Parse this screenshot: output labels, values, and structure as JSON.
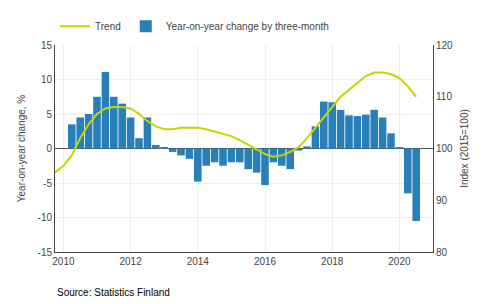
{
  "chart_data": {
    "type": "bar",
    "ylabel": "Year-on-year change, %",
    "y2label": "Index (2015=100)",
    "xlim": [
      2009.75,
      2021.0
    ],
    "xticks": [
      2010,
      2012,
      2014,
      2016,
      2018,
      2020
    ],
    "ylim": [
      -15,
      15
    ],
    "yticks": [
      -15,
      -10,
      -5,
      0,
      5,
      10,
      15
    ],
    "y2lim": [
      80,
      120
    ],
    "y2ticks": [
      80,
      90,
      100,
      110,
      120
    ],
    "grid": true,
    "legend": "upper left",
    "series": [
      {
        "name": "Year-on-year change by three-month",
        "type": "bar",
        "color": "#2980b9",
        "x": [
          2010.25,
          2010.5,
          2010.75,
          2011.0,
          2011.25,
          2011.5,
          2011.75,
          2012.0,
          2012.25,
          2012.5,
          2012.75,
          2013.0,
          2013.25,
          2013.5,
          2013.75,
          2014.0,
          2014.25,
          2014.5,
          2014.75,
          2015.0,
          2015.25,
          2015.5,
          2015.75,
          2016.0,
          2016.25,
          2016.5,
          2016.75,
          2017.0,
          2017.25,
          2017.5,
          2017.75,
          2018.0,
          2018.25,
          2018.5,
          2018.75,
          2019.0,
          2019.25,
          2019.5,
          2019.75,
          2020.0,
          2020.25,
          2020.5
        ],
        "values": [
          3.5,
          4.5,
          5.0,
          7.5,
          11.1,
          7.5,
          6.5,
          4.5,
          1.5,
          4.5,
          0.5,
          0.2,
          -0.5,
          -1.0,
          -1.5,
          -4.8,
          -2.5,
          -2.0,
          -2.5,
          -2.0,
          -2.0,
          -3.0,
          -3.5,
          -5.3,
          -2.0,
          -2.5,
          -3.0,
          -0.3,
          0.3,
          3.2,
          6.8,
          6.7,
          5.6,
          4.8,
          4.7,
          4.9,
          5.6,
          4.5,
          2.2,
          0.1,
          -6.5,
          -10.5
        ]
      },
      {
        "name": "Trend",
        "type": "line",
        "color": "#c8d400",
        "x": [
          2009.75,
          2010.0,
          2010.25,
          2010.5,
          2010.75,
          2011.0,
          2011.25,
          2011.5,
          2011.75,
          2012.0,
          2012.25,
          2012.5,
          2012.75,
          2013.0,
          2013.25,
          2013.5,
          2013.75,
          2014.0,
          2014.25,
          2014.5,
          2014.75,
          2015.0,
          2015.25,
          2015.5,
          2015.75,
          2016.0,
          2016.25,
          2016.5,
          2016.75,
          2017.0,
          2017.25,
          2017.5,
          2017.75,
          2018.0,
          2018.25,
          2018.5,
          2018.75,
          2019.0,
          2019.25,
          2019.5,
          2019.75,
          2020.0,
          2020.25,
          2020.5
        ],
        "values": [
          -3.5,
          -2.5,
          -1.0,
          1.5,
          3.5,
          5.0,
          5.8,
          6.0,
          6.0,
          5.8,
          5.0,
          4.0,
          3.2,
          2.8,
          2.8,
          3.0,
          3.0,
          3.0,
          2.8,
          2.5,
          2.2,
          1.8,
          1.2,
          0.5,
          -0.2,
          -0.8,
          -1.2,
          -1.0,
          -0.5,
          0.2,
          1.5,
          3.0,
          4.5,
          6.0,
          7.5,
          8.5,
          9.5,
          10.5,
          11.0,
          11.0,
          10.8,
          10.2,
          9.0,
          7.5
        ]
      }
    ],
    "annotations": [
      "Source: Statistics Finland"
    ]
  }
}
